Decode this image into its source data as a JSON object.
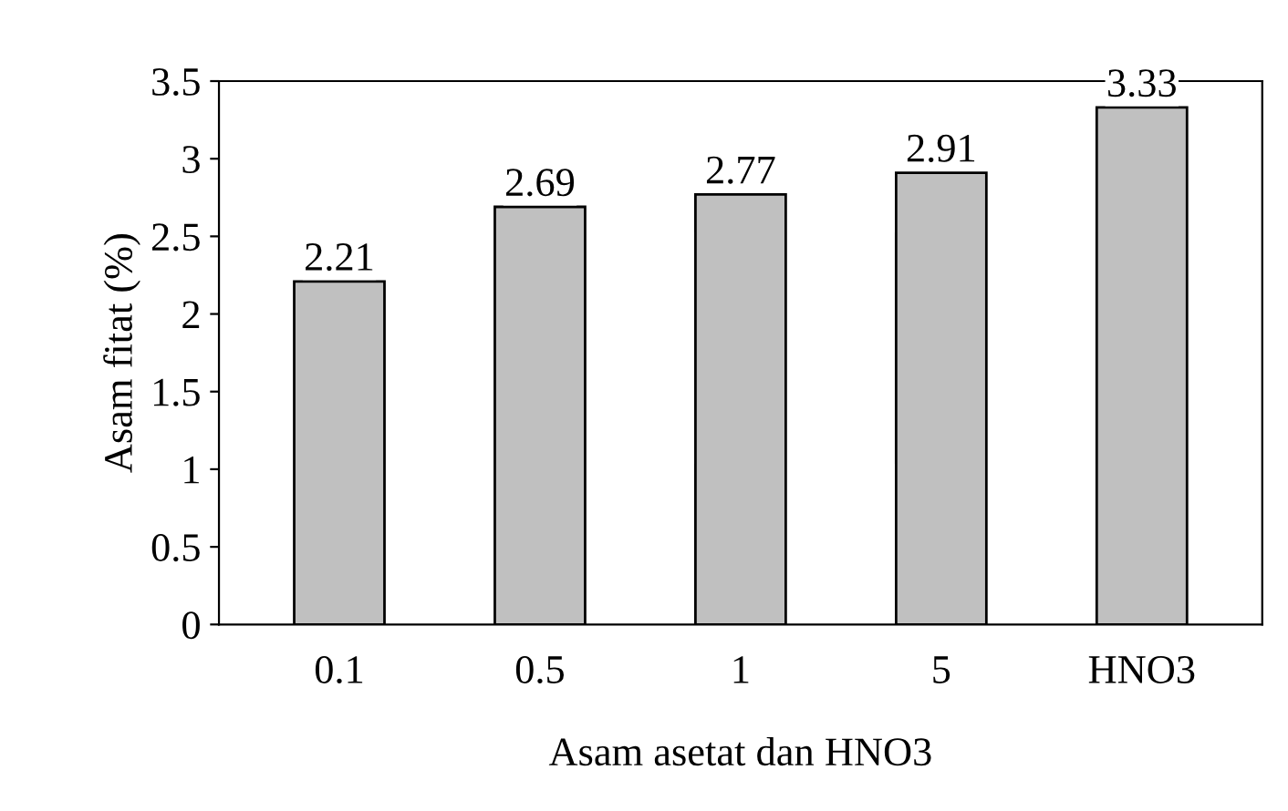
{
  "chart_data": {
    "type": "bar",
    "xlabel": "Asam asetat dan HNO3",
    "ylabel": "Asam fitat (%)",
    "categories": [
      "0.1",
      "0.5",
      "1",
      "5",
      "HNO3"
    ],
    "values": [
      2.21,
      2.69,
      2.77,
      2.91,
      3.33
    ],
    "color": "#c0c0c0",
    "ylim": [
      0,
      3.5
    ],
    "yticks": [
      0,
      0.5,
      1,
      1.5,
      2,
      2.5,
      3,
      3.5
    ],
    "grid": false,
    "data_labels": true
  }
}
